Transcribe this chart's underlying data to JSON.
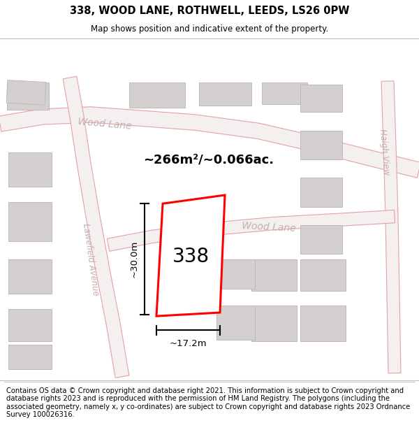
{
  "title_line1": "338, WOOD LANE, ROTHWELL, LEEDS, LS26 0PW",
  "title_line2": "Map shows position and indicative extent of the property.",
  "footer_text": "Contains OS data © Crown copyright and database right 2021. This information is subject to Crown copyright and database rights 2023 and is reproduced with the permission of HM Land Registry. The polygons (including the associated geometry, namely x, y co-ordinates) are subject to Crown copyright and database rights 2023 Ordnance Survey 100026316.",
  "area_text": "~266m²/~0.066ac.",
  "property_number": "338",
  "dim_width": "~17.2m",
  "dim_height": "~30.0m",
  "bg_color": "#f2eded",
  "map_bg": "#ffffff",
  "road_fill": "#ffffff",
  "road_stroke": "#e8a0a0",
  "building_fill": "#d4d0d0",
  "building_stroke": "#c0b8b8",
  "property_fill": "#ffffff",
  "property_stroke": "#ff0000",
  "street_label_color": "#c0b0b0",
  "title_fontsize": 10.5,
  "subtitle_fontsize": 8.5,
  "footer_fontsize": 7.2
}
